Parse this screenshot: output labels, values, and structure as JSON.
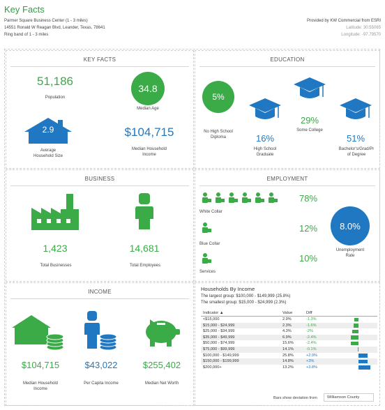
{
  "header": {
    "title": "Key Facts",
    "location": "Parmer Square Business Center (1 - 3 miles)",
    "address": "14551 Ronald W Reagan Blvd, Leander, Texas, 78641",
    "ring": "Ring band of 1 - 3 miles",
    "provider": "Provided by KW Commercial from ESRI",
    "latitude": "Latitude: 30.55065",
    "longitude": "Longitude: -97.79570"
  },
  "key_facts": {
    "title": "KEY FACTS",
    "population_value": "51,186",
    "population_label": "Population",
    "median_age_value": "34.8",
    "median_age_label": "Median Age",
    "household_size_value": "2.9",
    "household_size_label_1": "Average",
    "household_size_label_2": "Household Size",
    "income_value": "$104,715",
    "income_label_1": "Median Household",
    "income_label_2": "Income"
  },
  "education": {
    "title": "EDUCATION",
    "no_hs_value": "5%",
    "no_hs_label_1": "No High School",
    "no_hs_label_2": "Diploma",
    "hs_value": "16%",
    "hs_label_1": "High School",
    "hs_label_2": "Graduate",
    "college_value": "29%",
    "college_label": "Some College",
    "bachelor_value": "51%",
    "bachelor_label_1": "Bachelor's/Grad/Pr",
    "bachelor_label_2": "of Degree"
  },
  "business": {
    "title": "BUSINESS",
    "businesses_value": "1,423",
    "businesses_label": "Total Businesses",
    "employees_value": "14,681",
    "employees_label": "Total Employees"
  },
  "employment": {
    "title": "EMPLOYMENT",
    "white_value": "78%",
    "white_label": "White Collar",
    "blue_value": "12%",
    "blue_label": "Blue Collar",
    "services_value": "10%",
    "services_label": "Services",
    "unemployment_value": "8.0%",
    "unemployment_label_1": "Unemployment",
    "unemployment_label_2": "Rate"
  },
  "income": {
    "title": "INCOME",
    "median_value": "$104,715",
    "median_label_1": "Median Household",
    "median_label_2": "Income",
    "per_capita_value": "$43,022",
    "per_capita_label": "Per Capita Income",
    "net_worth_value": "$255,402",
    "net_worth_label": "Median Net Worth"
  },
  "households": {
    "title": "Households By Income",
    "largest": "The largest group: $100,000 - $149,999 (25.8%)",
    "smallest": "The smallest group: $15,000 - $24,999 (2.3%)",
    "col_indicator": "Indicator ▲",
    "col_value": "Value",
    "col_diff": "Diff",
    "rows": [
      {
        "indicator": "<$15,000",
        "value": "2.9%",
        "diff": "-1.3%",
        "diff_num": -1.3
      },
      {
        "indicator": "$15,000 - $24,999",
        "value": "2.3%",
        "diff": "-1.6%",
        "diff_num": -1.6
      },
      {
        "indicator": "$25,000 - $34,999",
        "value": "4.3%",
        "diff": "-2%",
        "diff_num": -2.0
      },
      {
        "indicator": "$35,000 - $49,999",
        "value": "6.9%",
        "diff": "-2.4%",
        "diff_num": -2.4
      },
      {
        "indicator": "$50,000 - $74,999",
        "value": "15.6%",
        "diff": "-2.4%",
        "diff_num": -2.4
      },
      {
        "indicator": "$75,000 - $99,999",
        "value": "14.1%",
        "diff": "-0.1%",
        "diff_num": -0.1
      },
      {
        "indicator": "$100,000 - $149,999",
        "value": "25.8%",
        "diff": "+2.9%",
        "diff_num": 2.9
      },
      {
        "indicator": "$150,000 - $199,999",
        "value": "14.8%",
        "diff": "+3%",
        "diff_num": 3.0
      },
      {
        "indicator": "$200,000+",
        "value": "13.2%",
        "diff": "+3.8%",
        "diff_num": 3.8
      }
    ],
    "deviation_label": "Bars show deviation from",
    "deviation_area": "Williamson County"
  },
  "colors": {
    "green": "#3aab47",
    "blue": "#1f78c1"
  }
}
